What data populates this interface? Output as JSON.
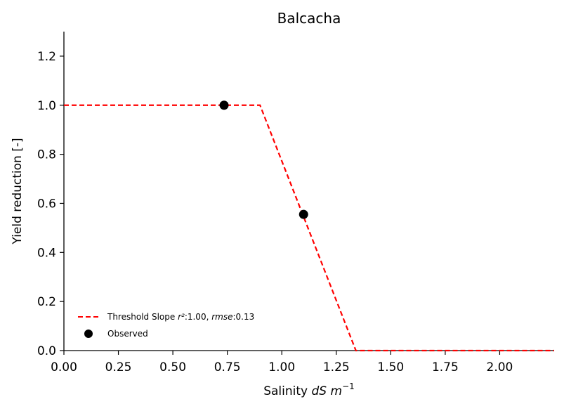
{
  "chart_data": {
    "type": "line",
    "title": "Balcacha",
    "xlabel_prefix": "Salinity ",
    "xlabel_unit_main": "dS m",
    "xlabel_unit_sup": "−1",
    "ylabel": "Yield reduction [-]",
    "xlim": [
      0.0,
      2.25
    ],
    "ylim": [
      0.0,
      1.3
    ],
    "x_ticks": [
      0.0,
      0.25,
      0.5,
      0.75,
      1.0,
      1.25,
      1.5,
      1.75,
      2.0
    ],
    "x_tick_labels": [
      "0.00",
      "0.25",
      "0.50",
      "0.75",
      "1.00",
      "1.25",
      "1.50",
      "1.75",
      "2.00"
    ],
    "y_ticks": [
      0.0,
      0.2,
      0.4,
      0.6,
      0.8,
      1.0,
      1.2
    ],
    "y_tick_labels": [
      "0.0",
      "0.2",
      "0.4",
      "0.6",
      "0.8",
      "1.0",
      "1.2"
    ],
    "grid": false,
    "legend_placement": "lower-left",
    "series": [
      {
        "name": "Threshold Slope r²:1.00, rmse:0.13",
        "legend_prefix": "Threshold Slope ",
        "legend_r2_sym": "r²",
        "legend_r2_val": ":1.00, ",
        "legend_rmse_sym": "rmse",
        "legend_rmse_val": ":0.13",
        "style": "dashed",
        "color": "#ff0000",
        "x": [
          0.0,
          0.9,
          1.34,
          2.25
        ],
        "y": [
          1.0,
          1.0,
          0.0,
          0.0
        ]
      },
      {
        "name": "Observed",
        "style": "scatter",
        "color": "#000000",
        "x": [
          0.735,
          1.1
        ],
        "y": [
          1.0,
          0.555
        ]
      }
    ]
  }
}
